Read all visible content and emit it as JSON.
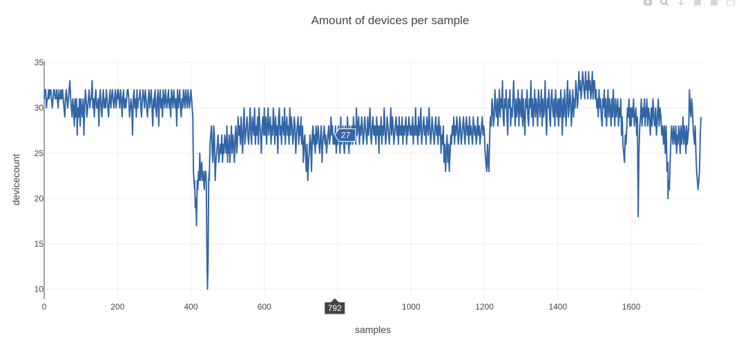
{
  "chart_data": {
    "type": "line",
    "title": "Amount of devices per sample",
    "xlabel": "samples",
    "ylabel": "devicecount",
    "xlim": [
      0,
      1790
    ],
    "ylim": [
      9.2,
      35.2
    ],
    "x_ticks": [
      0,
      200,
      400,
      600,
      800,
      1000,
      1200,
      1400,
      1600
    ],
    "y_ticks": [
      10,
      15,
      20,
      25,
      30,
      35
    ],
    "grid": true,
    "legend": "none",
    "line_color": "#3366a6",
    "series": [
      {
        "segments": [
          {
            "x0": 0,
            "x1": 50,
            "values": [
              31,
              32,
              32,
              30,
              31,
              31,
              32,
              31,
              32,
              32,
              31,
              30,
              31,
              32,
              32,
              31,
              31,
              32,
              31,
              30,
              32,
              31,
              31,
              32,
              31,
              32
            ]
          },
          {
            "x0": 50,
            "x1": 100,
            "values": [
              32,
              31,
              30,
              29,
              31,
              32,
              31,
              30,
              31,
              32,
              33,
              31,
              30,
              29,
              31,
              30,
              28,
              31,
              29,
              31,
              27,
              30,
              29,
              31,
              28,
              30
            ]
          },
          {
            "x0": 100,
            "x1": 200,
            "values": [
              31,
              30,
              29,
              31,
              27,
              30,
              32,
              31,
              29,
              30,
              31,
              32,
              30,
              31,
              31,
              33,
              30,
              31,
              29,
              31,
              32,
              30,
              30,
              31,
              28,
              31,
              32,
              30,
              29,
              31,
              32,
              30,
              31,
              30,
              32,
              31,
              30,
              29,
              31,
              32,
              30,
              31,
              32,
              31,
              30,
              31,
              32,
              30,
              31,
              32
            ]
          },
          {
            "x0": 200,
            "x1": 300,
            "values": [
              31,
              32,
              31,
              30,
              32,
              31,
              29,
              31,
              32,
              30,
              31,
              30,
              31,
              32,
              32,
              31,
              29,
              30,
              31,
              30,
              27,
              31,
              32,
              30,
              31,
              29,
              32,
              30,
              31,
              31,
              32,
              30,
              29,
              31,
              32,
              31,
              30,
              32,
              31,
              30,
              29,
              31,
              32,
              30,
              31,
              32,
              30,
              28,
              31,
              30
            ]
          },
          {
            "x0": 300,
            "x1": 400,
            "values": [
              31,
              32,
              30,
              29,
              31,
              32,
              28,
              31,
              32,
              30,
              31,
              29,
              32,
              31,
              30,
              32,
              31,
              30,
              31,
              32,
              30,
              31,
              29,
              32,
              31,
              30,
              32,
              31,
              30,
              31,
              28,
              32,
              30,
              31,
              32,
              30,
              29,
              31,
              30,
              32,
              31,
              30,
              32,
              31,
              30,
              32,
              31,
              30,
              31,
              32
            ]
          },
          {
            "x0": 400,
            "x1": 410,
            "values": [
              32,
              31,
              30,
              29,
              23,
              22,
              21
            ]
          },
          {
            "x0": 410,
            "x1": 440,
            "values": [
              22,
              19,
              20,
              17,
              22,
              21,
              23,
              22,
              25,
              22,
              23,
              24,
              22,
              23,
              22,
              21,
              23,
              22
            ]
          },
          {
            "x0": 440,
            "x1": 450,
            "values": [
              23,
              22,
              15,
              10,
              13,
              22,
              23
            ]
          },
          {
            "x0": 450,
            "x1": 500,
            "values": [
              22,
              26,
              27,
              28,
              25,
              24,
              28,
              27,
              22,
              24,
              25,
              26,
              27,
              24,
              25,
              26,
              25,
              27,
              24,
              26,
              25,
              27,
              26,
              25,
              28,
              24
            ]
          },
          {
            "x0": 500,
            "x1": 600,
            "values": [
              26,
              25,
              27,
              24,
              26,
              28,
              25,
              27,
              26,
              24,
              27,
              28,
              25,
              26,
              29,
              27,
              28,
              26,
              29,
              27,
              25,
              28,
              30,
              26,
              27,
              28,
              29,
              27,
              26,
              28,
              30,
              27,
              26,
              29,
              28,
              27,
              30,
              26,
              28,
              27,
              29,
              26,
              30,
              28,
              27,
              25,
              28,
              29,
              27,
              30
            ]
          },
          {
            "x0": 600,
            "x1": 700,
            "values": [
              28,
              27,
              29,
              26,
              28,
              30,
              27,
              28,
              29,
              26,
              28,
              27,
              30,
              28,
              26,
              29,
              27,
              28,
              25,
              29,
              30,
              27,
              28,
              26,
              29,
              28,
              27,
              30,
              26,
              28,
              29,
              27,
              28,
              26,
              30,
              27,
              29,
              28,
              26,
              27,
              29,
              28,
              25,
              27,
              28,
              29,
              26,
              28,
              27,
              29
            ]
          },
          {
            "x0": 700,
            "x1": 800,
            "values": [
              27,
              26,
              28,
              24,
              26,
              27,
              25,
              23,
              26,
              22,
              24,
              25,
              27,
              26,
              23,
              27,
              28,
              26,
              27,
              25,
              28,
              26,
              27,
              28,
              26,
              25,
              27,
              28,
              24,
              26,
              27,
              28,
              26,
              27,
              25,
              26,
              27,
              28,
              26,
              27,
              29,
              27,
              28,
              26,
              27,
              26,
              28,
              25,
              27,
              26
            ]
          },
          {
            "x0": 800,
            "x1": 900,
            "values": [
              26,
              28,
              27,
              25,
              29,
              26,
              27,
              28,
              26,
              25,
              28,
              27,
              26,
              29,
              27,
              25,
              28,
              26,
              27,
              28,
              26,
              29,
              27,
              28,
              26,
              30,
              27,
              28,
              29,
              26,
              28,
              27,
              29,
              28,
              26,
              27,
              29,
              28,
              27,
              26,
              29,
              27,
              28,
              30,
              27,
              26,
              28,
              29,
              27,
              28
            ]
          },
          {
            "x0": 900,
            "x1": 1000,
            "values": [
              27,
              28,
              26,
              29,
              27,
              28,
              25,
              28,
              27,
              29,
              26,
              28,
              27,
              30,
              28,
              26,
              27,
              29,
              28,
              27,
              26,
              28,
              30,
              27,
              29,
              28,
              26,
              27,
              28,
              29,
              27,
              28,
              26,
              29,
              27,
              28,
              27,
              29,
              26,
              28,
              27,
              28,
              29,
              26,
              28,
              27,
              29,
              28,
              27,
              28
            ]
          },
          {
            "x0": 1000,
            "x1": 1100,
            "values": [
              28,
              27,
              29,
              26,
              28,
              27,
              30,
              27,
              28,
              26,
              29,
              27,
              28,
              30,
              26,
              27,
              28,
              29,
              27,
              28,
              26,
              29,
              28,
              27,
              30,
              28,
              26,
              27,
              29,
              28,
              27,
              26,
              28,
              29,
              27,
              28,
              26,
              29,
              27,
              28,
              25,
              27,
              26,
              28,
              24,
              26,
              23,
              25,
              27,
              24
            ]
          },
          {
            "x0": 1100,
            "x1": 1200,
            "values": [
              24,
              26,
              23,
              25,
              27,
              26,
              28,
              27,
              29,
              26,
              28,
              27,
              29,
              28,
              26,
              27,
              29,
              28,
              26,
              27,
              28,
              29,
              27,
              26,
              28,
              29,
              27,
              28,
              26,
              29,
              27,
              28,
              27,
              26,
              29,
              28,
              27,
              28,
              26,
              27,
              29,
              27,
              28,
              26,
              27,
              28,
              29,
              27,
              28,
              27
            ]
          },
          {
            "x0": 1200,
            "x1": 1300,
            "values": [
              27,
              25,
              24,
              23,
              26,
              24,
              23,
              27,
              29,
              28,
              31,
              30,
              28,
              29,
              32,
              30,
              29,
              31,
              28,
              30,
              32,
              29,
              31,
              30,
              33,
              29,
              28,
              31,
              30,
              32,
              29,
              27,
              31,
              30,
              32,
              28,
              30,
              29,
              31,
              33,
              30,
              28,
              31,
              29,
              30,
              32,
              28,
              31,
              30,
              29
            ]
          },
          {
            "x0": 1300,
            "x1": 1400,
            "values": [
              30,
              32,
              28,
              31,
              29,
              27,
              31,
              30,
              32,
              29,
              28,
              31,
              30,
              33,
              29,
              31,
              28,
              30,
              32,
              29,
              31,
              30,
              28,
              32,
              31,
              29,
              30,
              32,
              28,
              31,
              29,
              30,
              33,
              29,
              27,
              31,
              30,
              32,
              29,
              28,
              31,
              32,
              30,
              29,
              31,
              28,
              32,
              30,
              29,
              31
            ]
          },
          {
            "x0": 1400,
            "x1": 1500,
            "values": [
              30,
              28,
              31,
              29,
              32,
              30,
              27,
              31,
              29,
              32,
              30,
              28,
              31,
              33,
              29,
              30,
              32,
              31,
              28,
              30,
              32,
              29,
              31,
              30,
              33,
              32,
              30,
              31,
              34,
              32,
              33,
              31,
              32,
              34,
              33,
              32,
              31,
              34,
              32,
              33,
              31,
              34,
              32,
              33,
              31,
              32,
              34,
              31,
              33,
              32
            ]
          },
          {
            "x0": 1500,
            "x1": 1600,
            "values": [
              33,
              31,
              32,
              30,
              31,
              29,
              32,
              30,
              31,
              29,
              28,
              31,
              30,
              32,
              29,
              31,
              28,
              30,
              32,
              29,
              31,
              30,
              28,
              31,
              29,
              32,
              30,
              28,
              31,
              29,
              30,
              31,
              28,
              30,
              29,
              31,
              27,
              29,
              26,
              25,
              24,
              27,
              26,
              28,
              30,
              29,
              31,
              28,
              30,
              29
            ]
          },
          {
            "x0": 1600,
            "x1": 1640,
            "values": [
              28,
              30,
              29,
              31,
              28,
              29,
              30,
              27,
              29,
              18,
              25,
              28,
              29,
              31,
              28,
              30,
              29,
              31,
              28,
              30
            ]
          },
          {
            "x0": 1640,
            "x1": 1700,
            "values": [
              29,
              31,
              28,
              30,
              29,
              27,
              30,
              28,
              31,
              29,
              28,
              30,
              27,
              29,
              31,
              28,
              30,
              29,
              27,
              28,
              26,
              28,
              25,
              28,
              23,
              24
            ]
          },
          {
            "x0": 1700,
            "x1": 1790,
            "values": [
              20,
              22,
              21,
              24,
              26,
              28,
              27,
              26,
              28,
              27,
              26,
              28,
              25,
              27,
              26,
              28,
              27,
              25,
              28,
              26,
              27,
              29,
              26,
              28,
              27,
              25,
              28,
              26,
              27,
              28,
              32,
              30,
              29,
              31,
              30,
              28,
              27,
              26,
              28,
              25,
              23,
              22,
              21,
              22,
              23,
              27,
              29
            ]
          }
        ]
      }
    ],
    "hover": {
      "x": 792,
      "y": 27,
      "x_label": "792",
      "y_label": "27",
      "box_color": "#3366a6",
      "xbox_color": "#444444"
    }
  },
  "modebar": {
    "icons": [
      "camera-icon",
      "zoom-icon",
      "pan-icon",
      "zoom-in-icon",
      "zoom-out-icon",
      "autoscale-icon"
    ]
  }
}
